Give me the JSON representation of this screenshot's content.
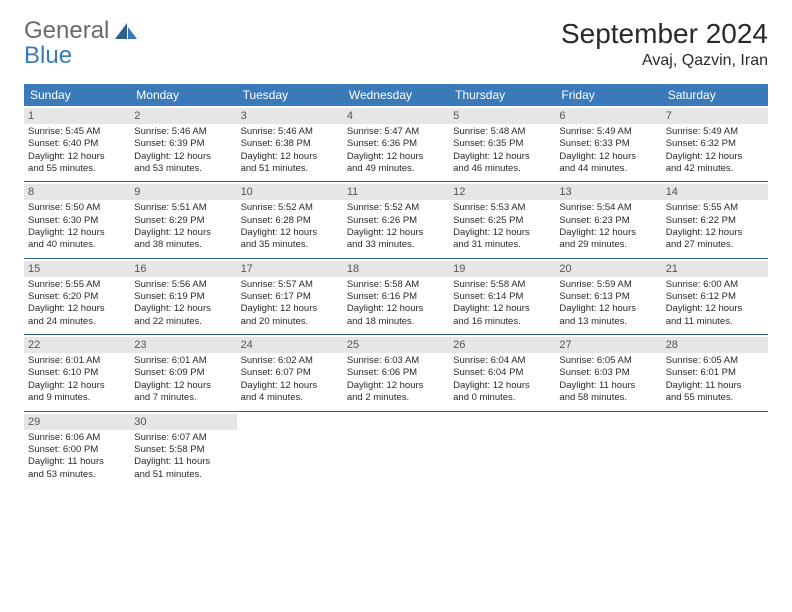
{
  "logo": {
    "general": "General",
    "blue": "Blue"
  },
  "title": "September 2024",
  "location": "Avaj, Qazvin, Iran",
  "colors": {
    "header_bg": "#3a7ab8",
    "day_num_bg": "#e6e6e6",
    "week_border": "#2f5e90",
    "text": "#2a2a2a",
    "logo_gray": "#6a6a6a",
    "logo_blue": "#3a7ab8"
  },
  "day_headers": [
    "Sunday",
    "Monday",
    "Tuesday",
    "Wednesday",
    "Thursday",
    "Friday",
    "Saturday"
  ],
  "weeks": [
    [
      {
        "day": "1",
        "sunrise": "Sunrise: 5:45 AM",
        "sunset": "Sunset: 6:40 PM",
        "daylight1": "Daylight: 12 hours",
        "daylight2": "and 55 minutes."
      },
      {
        "day": "2",
        "sunrise": "Sunrise: 5:46 AM",
        "sunset": "Sunset: 6:39 PM",
        "daylight1": "Daylight: 12 hours",
        "daylight2": "and 53 minutes."
      },
      {
        "day": "3",
        "sunrise": "Sunrise: 5:46 AM",
        "sunset": "Sunset: 6:38 PM",
        "daylight1": "Daylight: 12 hours",
        "daylight2": "and 51 minutes."
      },
      {
        "day": "4",
        "sunrise": "Sunrise: 5:47 AM",
        "sunset": "Sunset: 6:36 PM",
        "daylight1": "Daylight: 12 hours",
        "daylight2": "and 49 minutes."
      },
      {
        "day": "5",
        "sunrise": "Sunrise: 5:48 AM",
        "sunset": "Sunset: 6:35 PM",
        "daylight1": "Daylight: 12 hours",
        "daylight2": "and 46 minutes."
      },
      {
        "day": "6",
        "sunrise": "Sunrise: 5:49 AM",
        "sunset": "Sunset: 6:33 PM",
        "daylight1": "Daylight: 12 hours",
        "daylight2": "and 44 minutes."
      },
      {
        "day": "7",
        "sunrise": "Sunrise: 5:49 AM",
        "sunset": "Sunset: 6:32 PM",
        "daylight1": "Daylight: 12 hours",
        "daylight2": "and 42 minutes."
      }
    ],
    [
      {
        "day": "8",
        "sunrise": "Sunrise: 5:50 AM",
        "sunset": "Sunset: 6:30 PM",
        "daylight1": "Daylight: 12 hours",
        "daylight2": "and 40 minutes."
      },
      {
        "day": "9",
        "sunrise": "Sunrise: 5:51 AM",
        "sunset": "Sunset: 6:29 PM",
        "daylight1": "Daylight: 12 hours",
        "daylight2": "and 38 minutes."
      },
      {
        "day": "10",
        "sunrise": "Sunrise: 5:52 AM",
        "sunset": "Sunset: 6:28 PM",
        "daylight1": "Daylight: 12 hours",
        "daylight2": "and 35 minutes."
      },
      {
        "day": "11",
        "sunrise": "Sunrise: 5:52 AM",
        "sunset": "Sunset: 6:26 PM",
        "daylight1": "Daylight: 12 hours",
        "daylight2": "and 33 minutes."
      },
      {
        "day": "12",
        "sunrise": "Sunrise: 5:53 AM",
        "sunset": "Sunset: 6:25 PM",
        "daylight1": "Daylight: 12 hours",
        "daylight2": "and 31 minutes."
      },
      {
        "day": "13",
        "sunrise": "Sunrise: 5:54 AM",
        "sunset": "Sunset: 6:23 PM",
        "daylight1": "Daylight: 12 hours",
        "daylight2": "and 29 minutes."
      },
      {
        "day": "14",
        "sunrise": "Sunrise: 5:55 AM",
        "sunset": "Sunset: 6:22 PM",
        "daylight1": "Daylight: 12 hours",
        "daylight2": "and 27 minutes."
      }
    ],
    [
      {
        "day": "15",
        "sunrise": "Sunrise: 5:55 AM",
        "sunset": "Sunset: 6:20 PM",
        "daylight1": "Daylight: 12 hours",
        "daylight2": "and 24 minutes."
      },
      {
        "day": "16",
        "sunrise": "Sunrise: 5:56 AM",
        "sunset": "Sunset: 6:19 PM",
        "daylight1": "Daylight: 12 hours",
        "daylight2": "and 22 minutes."
      },
      {
        "day": "17",
        "sunrise": "Sunrise: 5:57 AM",
        "sunset": "Sunset: 6:17 PM",
        "daylight1": "Daylight: 12 hours",
        "daylight2": "and 20 minutes."
      },
      {
        "day": "18",
        "sunrise": "Sunrise: 5:58 AM",
        "sunset": "Sunset: 6:16 PM",
        "daylight1": "Daylight: 12 hours",
        "daylight2": "and 18 minutes."
      },
      {
        "day": "19",
        "sunrise": "Sunrise: 5:58 AM",
        "sunset": "Sunset: 6:14 PM",
        "daylight1": "Daylight: 12 hours",
        "daylight2": "and 16 minutes."
      },
      {
        "day": "20",
        "sunrise": "Sunrise: 5:59 AM",
        "sunset": "Sunset: 6:13 PM",
        "daylight1": "Daylight: 12 hours",
        "daylight2": "and 13 minutes."
      },
      {
        "day": "21",
        "sunrise": "Sunrise: 6:00 AM",
        "sunset": "Sunset: 6:12 PM",
        "daylight1": "Daylight: 12 hours",
        "daylight2": "and 11 minutes."
      }
    ],
    [
      {
        "day": "22",
        "sunrise": "Sunrise: 6:01 AM",
        "sunset": "Sunset: 6:10 PM",
        "daylight1": "Daylight: 12 hours",
        "daylight2": "and 9 minutes."
      },
      {
        "day": "23",
        "sunrise": "Sunrise: 6:01 AM",
        "sunset": "Sunset: 6:09 PM",
        "daylight1": "Daylight: 12 hours",
        "daylight2": "and 7 minutes."
      },
      {
        "day": "24",
        "sunrise": "Sunrise: 6:02 AM",
        "sunset": "Sunset: 6:07 PM",
        "daylight1": "Daylight: 12 hours",
        "daylight2": "and 4 minutes."
      },
      {
        "day": "25",
        "sunrise": "Sunrise: 6:03 AM",
        "sunset": "Sunset: 6:06 PM",
        "daylight1": "Daylight: 12 hours",
        "daylight2": "and 2 minutes."
      },
      {
        "day": "26",
        "sunrise": "Sunrise: 6:04 AM",
        "sunset": "Sunset: 6:04 PM",
        "daylight1": "Daylight: 12 hours",
        "daylight2": "and 0 minutes."
      },
      {
        "day": "27",
        "sunrise": "Sunrise: 6:05 AM",
        "sunset": "Sunset: 6:03 PM",
        "daylight1": "Daylight: 11 hours",
        "daylight2": "and 58 minutes."
      },
      {
        "day": "28",
        "sunrise": "Sunrise: 6:05 AM",
        "sunset": "Sunset: 6:01 PM",
        "daylight1": "Daylight: 11 hours",
        "daylight2": "and 55 minutes."
      }
    ],
    [
      {
        "day": "29",
        "sunrise": "Sunrise: 6:06 AM",
        "sunset": "Sunset: 6:00 PM",
        "daylight1": "Daylight: 11 hours",
        "daylight2": "and 53 minutes."
      },
      {
        "day": "30",
        "sunrise": "Sunrise: 6:07 AM",
        "sunset": "Sunset: 5:58 PM",
        "daylight1": "Daylight: 11 hours",
        "daylight2": "and 51 minutes."
      },
      null,
      null,
      null,
      null,
      null
    ]
  ]
}
